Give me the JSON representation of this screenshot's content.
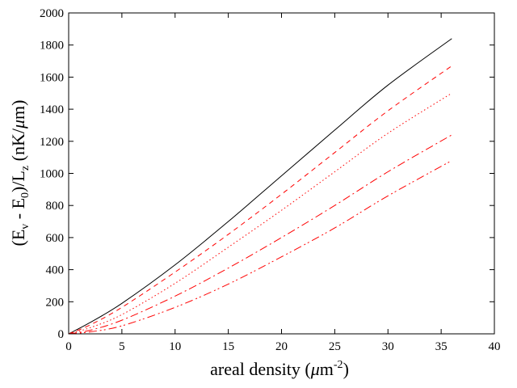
{
  "chart_data": {
    "type": "line",
    "title": "",
    "xlabel": {
      "prefix": "areal density (",
      "mu": "μ",
      "unit": "m",
      "exponent": "-2",
      "suffix": ")"
    },
    "ylabel": {
      "open": "(E",
      "sub1": "v",
      "mid": " - E",
      "sub2": "0",
      "mid2": ")/L",
      "sub3": "z",
      "units_open": "  (nK/",
      "mu": "μ",
      "units_close": "m)"
    },
    "xlim": [
      0,
      40
    ],
    "ylim": [
      0,
      2000
    ],
    "x_ticks": [
      0,
      5,
      10,
      15,
      20,
      25,
      30,
      35,
      40
    ],
    "y_ticks": [
      0,
      200,
      400,
      600,
      800,
      1000,
      1200,
      1400,
      1600,
      1800,
      2000
    ],
    "grid": false,
    "legend": "none",
    "series": [
      {
        "name": "solid",
        "color": "#000000",
        "dash": "solid",
        "x": [
          0,
          2,
          5,
          10,
          15,
          20,
          25,
          30,
          36
        ],
        "y": [
          0,
          70,
          190,
          430,
          700,
          985,
          1270,
          1550,
          1840
        ]
      },
      {
        "name": "dashed",
        "color": "#ff0000",
        "dash": "dashed",
        "x": [
          0,
          2,
          5,
          10,
          15,
          20,
          25,
          30,
          36
        ],
        "y": [
          0,
          55,
          165,
          385,
          620,
          870,
          1130,
          1390,
          1670
        ]
      },
      {
        "name": "dotted",
        "color": "#ff0000",
        "dash": "dotted",
        "x": [
          0,
          2,
          5,
          10,
          15,
          20,
          25,
          30,
          36
        ],
        "y": [
          0,
          38,
          120,
          315,
          540,
          770,
          1010,
          1250,
          1500
        ]
      },
      {
        "name": "dash-dot",
        "color": "#ff0000",
        "dash": "dashdot",
        "x": [
          0,
          2,
          5,
          10,
          15,
          20,
          25,
          30,
          36
        ],
        "y": [
          0,
          22,
          85,
          235,
          410,
          600,
          800,
          1010,
          1240
        ]
      },
      {
        "name": "dash-dot-dot",
        "color": "#ff0000",
        "dash": "dashdotdot",
        "x": [
          0,
          2,
          5,
          10,
          15,
          20,
          25,
          30,
          36
        ],
        "y": [
          0,
          12,
          50,
          165,
          310,
          480,
          660,
          860,
          1080
        ]
      }
    ]
  }
}
